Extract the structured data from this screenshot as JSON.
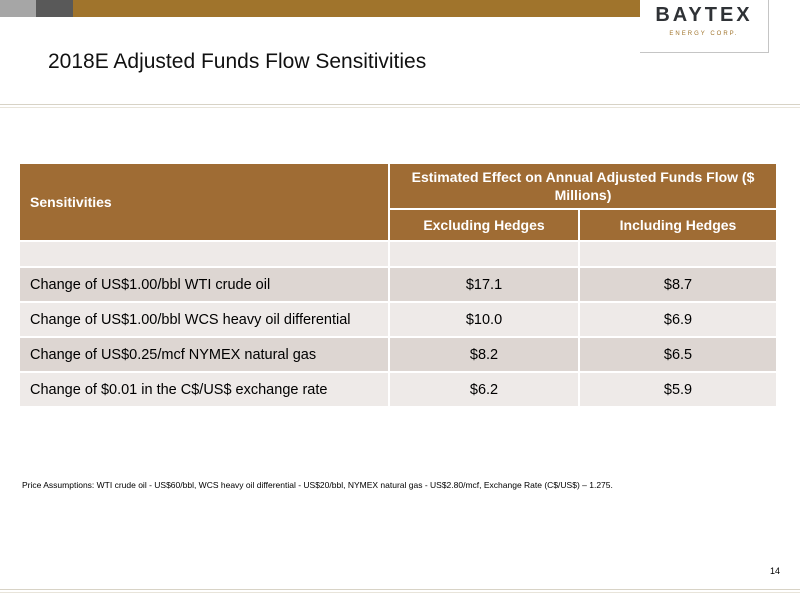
{
  "logo": {
    "name": "BAYTEX",
    "sub": "ENERGY CORP."
  },
  "title": "2018E Adjusted Funds Flow Sensitivities",
  "table": {
    "col_sensitivities": "Sensitivities",
    "group_header": "Estimated Effect on Annual Adjusted Funds Flow ($ Millions)",
    "col_excluding": "Excluding Hedges",
    "col_including": "Including Hedges",
    "rows": [
      {
        "label": "Change of US$1.00/bbl WTI crude oil",
        "excluding": "$17.1",
        "including": "$8.7"
      },
      {
        "label": "Change of US$1.00/bbl WCS heavy oil differential",
        "excluding": "$10.0",
        "including": "$6.9"
      },
      {
        "label": "Change of US$0.25/mcf NYMEX natural gas",
        "excluding": "$8.2",
        "including": "$6.5"
      },
      {
        "label": "Change of $0.01 in the C$/US$ exchange rate",
        "excluding": "$6.2",
        "including": "$5.9"
      }
    ]
  },
  "footnote": "Price Assumptions: WTI crude oil - US$60/bbl, WCS heavy oil differential - US$20/bbl, NYMEX natural gas - US$2.80/mcf, Exchange Rate (C$/US$) – 1.275.",
  "page_number": "14"
}
